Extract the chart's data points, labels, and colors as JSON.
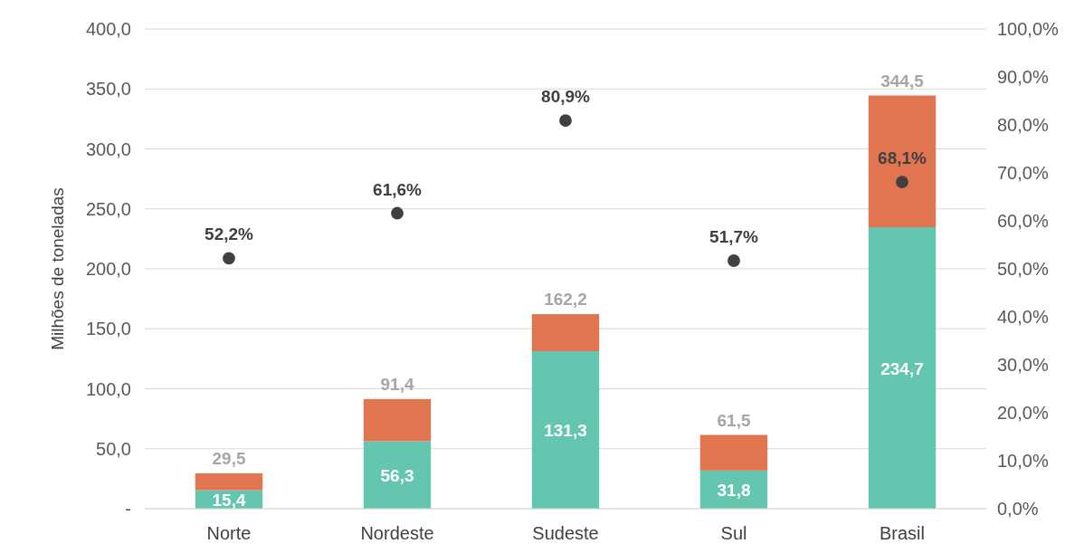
{
  "chart_data": {
    "type": "bar",
    "stacked": true,
    "ylabel": "Milhões de toneladas",
    "categories": [
      "Norte",
      "Nordeste",
      "Sudeste",
      "Sul",
      "Brasil"
    ],
    "series": [
      {
        "color": "#64c6b1",
        "values": [
          15.4,
          56.3,
          131.3,
          31.8,
          234.7
        ],
        "value_labels": [
          "15,4",
          "56,3",
          "131,3",
          "31,8",
          "234,7"
        ]
      },
      {
        "color": "#e07550",
        "values": [
          14.1,
          35.1,
          30.9,
          29.7,
          109.8
        ]
      },
      {
        "type": "scatter",
        "axis": "y2",
        "color": "#404040",
        "values": [
          52.2,
          61.6,
          80.9,
          51.7,
          68.1
        ],
        "value_labels": [
          "52,2%",
          "61,6%",
          "80,9%",
          "51,7%",
          "68,1%"
        ]
      }
    ],
    "totals": [
      "29,5",
      "91,4",
      "162,2",
      "61,5",
      "344,5"
    ],
    "marker": "circle",
    "ylim": [
      0,
      400
    ],
    "yticks": [
      {
        "value": 0,
        "label": "-"
      },
      {
        "value": 50,
        "label": "50,0"
      },
      {
        "value": 100,
        "label": "100,0"
      },
      {
        "value": 150,
        "label": "150,0"
      },
      {
        "value": 200,
        "label": "200,0"
      },
      {
        "value": 250,
        "label": "250,0"
      },
      {
        "value": 300,
        "label": "300,0"
      },
      {
        "value": 350,
        "label": "350,0"
      },
      {
        "value": 400,
        "label": "400,0"
      }
    ],
    "y2lim": [
      0,
      100
    ],
    "y2ticks": [
      {
        "value": 0,
        "label": "0,0%"
      },
      {
        "value": 10,
        "label": "10,0%"
      },
      {
        "value": 20,
        "label": "20,0%"
      },
      {
        "value": 30,
        "label": "30,0%"
      },
      {
        "value": 40,
        "label": "40,0%"
      },
      {
        "value": 50,
        "label": "50,0%"
      },
      {
        "value": 60,
        "label": "60,0%"
      },
      {
        "value": 70,
        "label": "70,0%"
      },
      {
        "value": 80,
        "label": "80,0%"
      },
      {
        "value": 90,
        "label": "90,0%"
      },
      {
        "value": 100,
        "label": "100,0%"
      }
    ],
    "grid": "y"
  }
}
